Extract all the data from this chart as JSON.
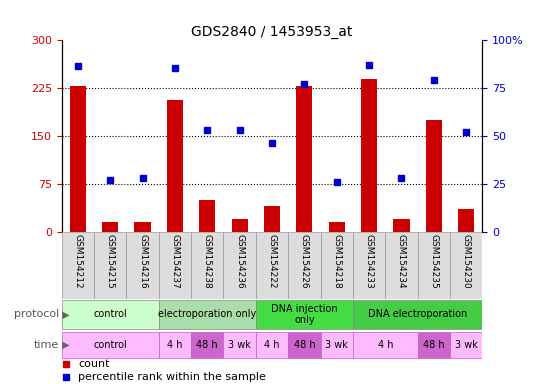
{
  "title": "GDS2840 / 1453953_at",
  "samples": [
    "GSM154212",
    "GSM154215",
    "GSM154216",
    "GSM154237",
    "GSM154238",
    "GSM154236",
    "GSM154222",
    "GSM154226",
    "GSM154218",
    "GSM154233",
    "GSM154234",
    "GSM154235",
    "GSM154230"
  ],
  "counts": [
    228,
    15,
    15,
    205,
    50,
    20,
    40,
    228,
    15,
    238,
    20,
    175,
    35
  ],
  "percentiles": [
    86,
    27,
    28,
    85,
    53,
    53,
    46,
    77,
    26,
    87,
    28,
    79,
    52
  ],
  "ylim_left": [
    0,
    300
  ],
  "ylim_right": [
    0,
    100
  ],
  "yticks_left": [
    0,
    75,
    150,
    225,
    300
  ],
  "ytick_labels_left": [
    "0",
    "75",
    "150",
    "225",
    "300"
  ],
  "yticks_right": [
    0,
    25,
    50,
    75,
    100
  ],
  "ytick_labels_right": [
    "0",
    "25",
    "50",
    "75",
    "100%"
  ],
  "bar_color": "#cc0000",
  "dot_color": "#0000cc",
  "grid_color": "#000000",
  "hgrid_vals": [
    75,
    150,
    225
  ],
  "protocols": [
    {
      "label": "control",
      "start": 0,
      "end": 3,
      "color": "#ccffcc"
    },
    {
      "label": "electroporation only",
      "start": 3,
      "end": 6,
      "color": "#aaddaa"
    },
    {
      "label": "DNA injection\nonly",
      "start": 6,
      "end": 9,
      "color": "#44dd44"
    },
    {
      "label": "DNA electroporation",
      "start": 9,
      "end": 13,
      "color": "#44cc44"
    }
  ],
  "times": [
    {
      "label": "control",
      "start": 0,
      "end": 3,
      "color": "#ffbbff"
    },
    {
      "label": "4 h",
      "start": 3,
      "end": 4,
      "color": "#ffbbff"
    },
    {
      "label": "48 h",
      "start": 4,
      "end": 5,
      "color": "#cc66cc"
    },
    {
      "label": "3 wk",
      "start": 5,
      "end": 6,
      "color": "#ffbbff"
    },
    {
      "label": "4 h",
      "start": 6,
      "end": 7,
      "color": "#ffbbff"
    },
    {
      "label": "48 h",
      "start": 7,
      "end": 8,
      "color": "#cc66cc"
    },
    {
      "label": "3 wk",
      "start": 8,
      "end": 9,
      "color": "#ffbbff"
    },
    {
      "label": "4 h",
      "start": 9,
      "end": 11,
      "color": "#ffbbff"
    },
    {
      "label": "48 h",
      "start": 11,
      "end": 12,
      "color": "#cc66cc"
    },
    {
      "label": "3 wk",
      "start": 12,
      "end": 13,
      "color": "#ffbbff"
    }
  ],
  "legend_items": [
    {
      "label": "count",
      "color": "#cc0000"
    },
    {
      "label": "percentile rank within the sample",
      "color": "#0000cc"
    }
  ],
  "sample_cell_color": "#dddddd",
  "sample_cell_edge": "#999999",
  "left_label_color": "#555555",
  "arrow_color": "#666666"
}
